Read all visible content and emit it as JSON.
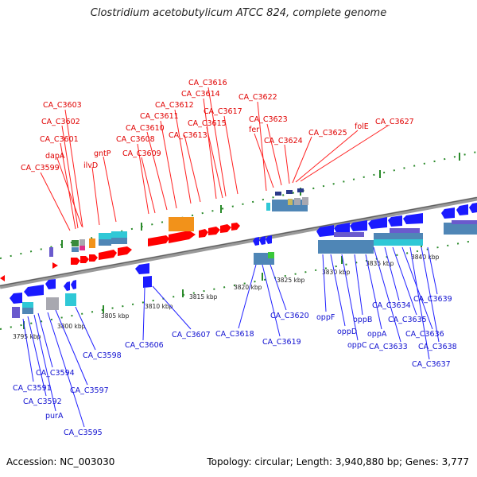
{
  "title": "Clostridium acetobutylicum ATCC 824, complete genome",
  "footer": {
    "accession": "Accession: NC_003030",
    "stats": "Topology: circular; Length: 3,940,880 bp; Genes: 3,777"
  },
  "colors": {
    "forward": "#ff0000",
    "reverse": "#1a1aff",
    "backbone": "#7a7a7a",
    "tick": "#2a8a2a",
    "orange": "#f2921a",
    "cyan": "#2fc8d6",
    "steelblue": "#4f86b6",
    "gray": "#a8a8b0",
    "purple": "#6a5acd"
  },
  "scale_labels": [
    {
      "text": "3795 kbp"
    },
    {
      "text": "3800 kbp"
    },
    {
      "text": "3805 kbp"
    },
    {
      "text": "3810 kbp"
    },
    {
      "text": "3815 kbp"
    },
    {
      "text": "3820 kbp"
    },
    {
      "text": "3825 kbp"
    },
    {
      "text": "3830 kbp"
    },
    {
      "text": "3835 kbp"
    },
    {
      "text": "3840 kbp"
    }
  ],
  "forward_labels": [
    {
      "text": "CA_C3599"
    },
    {
      "text": "CA_C3601"
    },
    {
      "text": "CA_C3602"
    },
    {
      "text": "CA_C3603"
    },
    {
      "text": "dapA"
    },
    {
      "text": "ilvD"
    },
    {
      "text": "gntP"
    },
    {
      "text": "CA_C3608"
    },
    {
      "text": "CA_C3609"
    },
    {
      "text": "CA_C3610"
    },
    {
      "text": "CA_C3611"
    },
    {
      "text": "CA_C3612"
    },
    {
      "text": "CA_C3613"
    },
    {
      "text": "CA_C3614"
    },
    {
      "text": "CA_C3615"
    },
    {
      "text": "CA_C3616"
    },
    {
      "text": "CA_C3617"
    },
    {
      "text": "CA_C3622"
    },
    {
      "text": "fer"
    },
    {
      "text": "CA_C3623"
    },
    {
      "text": "CA_C3624"
    },
    {
      "text": "CA_C3625"
    },
    {
      "text": "folE"
    },
    {
      "text": "CA_C3627"
    }
  ],
  "reverse_labels": [
    {
      "text": "CA_C3591"
    },
    {
      "text": "CA_C3592"
    },
    {
      "text": "CA_C3594"
    },
    {
      "text": "purA"
    },
    {
      "text": "CA_C3595"
    },
    {
      "text": "CA_C3597"
    },
    {
      "text": "CA_C3598"
    },
    {
      "text": "CA_C3606"
    },
    {
      "text": "CA_C3607"
    },
    {
      "text": "CA_C3618"
    },
    {
      "text": "CA_C3619"
    },
    {
      "text": "CA_C3620"
    },
    {
      "text": "oppF"
    },
    {
      "text": "oppD"
    },
    {
      "text": "oppC"
    },
    {
      "text": "oppB"
    },
    {
      "text": "oppA"
    },
    {
      "text": "CA_C3633"
    },
    {
      "text": "CA_C3634"
    },
    {
      "text": "CA_C3635"
    },
    {
      "text": "CA_C3636"
    },
    {
      "text": "CA_C3637"
    },
    {
      "text": "CA_C3638"
    },
    {
      "text": "CA_C3639"
    }
  ]
}
